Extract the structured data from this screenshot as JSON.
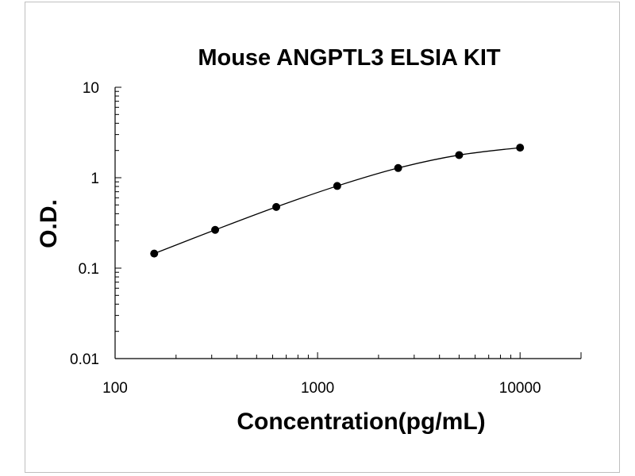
{
  "chart_data": {
    "type": "scatter",
    "title": "Mouse ANGPTL3 ELSIA KIT",
    "xlabel": "Concentration(pg/mL)",
    "ylabel": "O.D.",
    "x_scale": "log",
    "y_scale": "log",
    "xlim": [
      100,
      20000
    ],
    "ylim": [
      0.01,
      10
    ],
    "x_ticks": [
      {
        "value": 100,
        "label": "100"
      },
      {
        "value": 1000,
        "label": "1000"
      },
      {
        "value": 10000,
        "label": "10000"
      }
    ],
    "y_ticks": [
      {
        "value": 10,
        "label": "10"
      },
      {
        "value": 1,
        "label": "1"
      },
      {
        "value": 0.1,
        "label": "0.1"
      },
      {
        "value": 0.01,
        "label": "0.01"
      }
    ],
    "grid": false,
    "legend": "none",
    "fit_curve": "smooth",
    "series": [
      {
        "x": [
          156,
          312,
          625,
          1250,
          2500,
          5000,
          10000
        ],
        "y": [
          0.145,
          0.265,
          0.475,
          0.81,
          1.28,
          1.78,
          2.15
        ]
      }
    ],
    "colors": {
      "line": "#000000",
      "marker": "#000000",
      "axis": "#000000"
    }
  }
}
